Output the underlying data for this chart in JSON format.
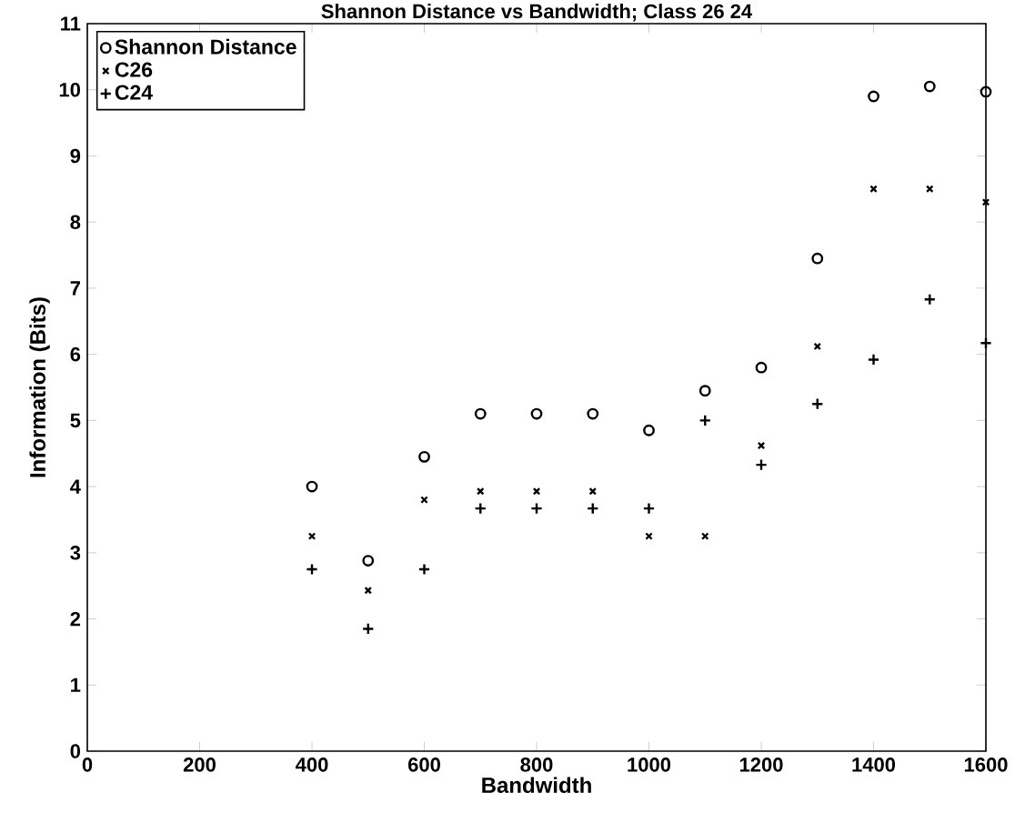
{
  "chart_data": {
    "type": "scatter",
    "title": "Shannon Distance vs Bandwidth; Class 26  24",
    "xlabel": "Bandwidth",
    "ylabel": "Information (Bits)",
    "x": [
      400,
      500,
      600,
      700,
      800,
      900,
      1000,
      1100,
      1200,
      1300,
      1400,
      1500,
      1600
    ],
    "series": [
      {
        "name": "Shannon Distance",
        "color": "#000000",
        "marker": "circle",
        "values": [
          4.0,
          2.88,
          4.45,
          5.1,
          5.1,
          5.1,
          4.85,
          5.45,
          5.8,
          7.45,
          9.9,
          10.05,
          9.97
        ]
      },
      {
        "name": "C26",
        "color": "#000000",
        "marker": "cross",
        "values": [
          3.25,
          2.43,
          3.8,
          3.93,
          3.93,
          3.93,
          3.25,
          3.25,
          4.62,
          6.12,
          8.5,
          8.5,
          8.3
        ]
      },
      {
        "name": "C24",
        "color": "#000000",
        "marker": "plus",
        "values": [
          2.75,
          1.85,
          2.75,
          3.67,
          3.67,
          3.67,
          3.67,
          5.0,
          4.33,
          5.25,
          5.92,
          6.83,
          6.17
        ]
      }
    ],
    "xlim": [
      0,
      1600
    ],
    "xticks": [
      0,
      200,
      400,
      600,
      800,
      1000,
      1200,
      1400,
      1600
    ],
    "ylim": [
      0,
      11
    ],
    "yticks": [
      0,
      1,
      2,
      3,
      4,
      5,
      6,
      7,
      8,
      9,
      10,
      11
    ],
    "grid": false,
    "legend": "top left"
  }
}
